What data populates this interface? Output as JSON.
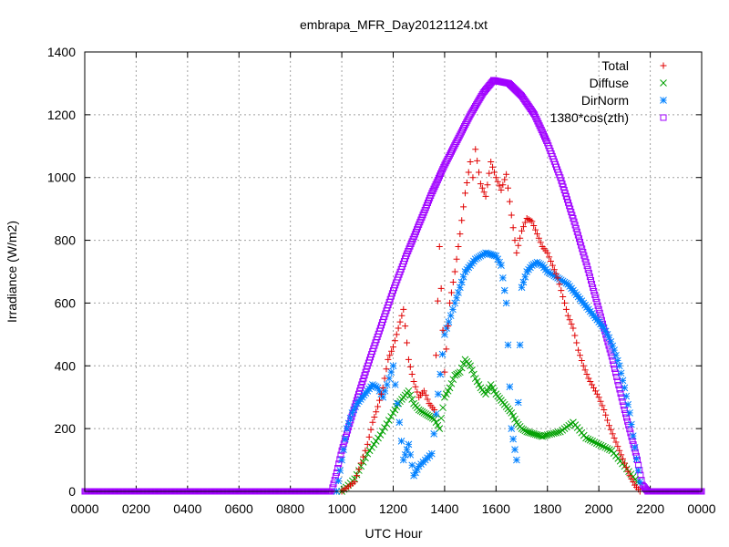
{
  "chart_data": {
    "type": "scatter",
    "title": "embrapa_MFR_Day20121124.txt",
    "xlabel": "UTC Hour",
    "ylabel": "Irradiance (W/m2)",
    "xlim": [
      0,
      2400
    ],
    "ylim": [
      0,
      1400
    ],
    "xtick_labels": [
      "0000",
      "0200",
      "0400",
      "0600",
      "0800",
      "1000",
      "1200",
      "1400",
      "1600",
      "1800",
      "2000",
      "2200",
      "0000"
    ],
    "ytick_labels": [
      "0",
      "200",
      "400",
      "600",
      "800",
      "1000",
      "1200",
      "1400"
    ],
    "grid": true,
    "legend_position": "top-right",
    "series": [
      {
        "name": "Total",
        "marker": "plus",
        "color": "#e00000",
        "x": [
          1000,
          1050,
          1100,
          1120,
          1140,
          1160,
          1180,
          1200,
          1220,
          1240,
          1260,
          1280,
          1300,
          1320,
          1340,
          1360,
          1380,
          1400,
          1420,
          1440,
          1460,
          1480,
          1500,
          1510,
          1520,
          1540,
          1560,
          1580,
          1600,
          1620,
          1640,
          1660,
          1680,
          1700,
          1720,
          1740,
          1760,
          1780,
          1800,
          1820,
          1840,
          1860,
          1880,
          1900,
          1920,
          1940,
          1960,
          1980,
          2000,
          2020,
          2040,
          2060,
          2080,
          2100,
          2120,
          2140,
          2160
        ],
        "y": [
          0,
          30,
          150,
          220,
          270,
          330,
          420,
          460,
          520,
          580,
          420,
          350,
          300,
          320,
          280,
          260,
          780,
          380,
          600,
          700,
          820,
          950,
          1050,
          1000,
          1090,
          980,
          940,
          1050,
          1000,
          960,
          1010,
          880,
          760,
          830,
          870,
          860,
          820,
          780,
          760,
          720,
          680,
          620,
          560,
          520,
          450,
          400,
          360,
          330,
          300,
          260,
          210,
          170,
          130,
          90,
          50,
          20,
          0
        ]
      },
      {
        "name": "Diffuse",
        "marker": "cross",
        "color": "#00a000",
        "x": [
          1000,
          1050,
          1100,
          1150,
          1200,
          1220,
          1240,
          1260,
          1280,
          1300,
          1320,
          1340,
          1360,
          1380,
          1400,
          1420,
          1440,
          1460,
          1480,
          1500,
          1520,
          1540,
          1560,
          1580,
          1600,
          1620,
          1640,
          1660,
          1680,
          1700,
          1720,
          1740,
          1760,
          1780,
          1800,
          1850,
          1900,
          1950,
          2000,
          2050,
          2100,
          2150
        ],
        "y": [
          0,
          40,
          120,
          180,
          250,
          280,
          300,
          320,
          280,
          260,
          250,
          240,
          230,
          200,
          300,
          330,
          370,
          380,
          420,
          400,
          360,
          330,
          310,
          340,
          310,
          290,
          270,
          250,
          220,
          200,
          190,
          185,
          180,
          175,
          180,
          190,
          220,
          170,
          150,
          130,
          80,
          30
        ]
      },
      {
        "name": "DirNorm",
        "marker": "star",
        "color": "#0080ff",
        "x": [
          980,
          1000,
          1020,
          1040,
          1060,
          1080,
          1100,
          1120,
          1140,
          1160,
          1200,
          1240,
          1260,
          1280,
          1300,
          1350,
          1400,
          1440,
          1460,
          1480,
          1500,
          1520,
          1540,
          1560,
          1580,
          1600,
          1620,
          1640,
          1660,
          1680,
          1700,
          1720,
          1740,
          1760,
          1780,
          1800,
          1820,
          1840,
          1860,
          1880,
          1900,
          1920,
          1940,
          1960,
          1980,
          2000,
          2020,
          2040,
          2060,
          2080,
          2100,
          2120,
          2140,
          2160
        ],
        "y": [
          0,
          100,
          200,
          250,
          280,
          300,
          320,
          340,
          330,
          300,
          400,
          100,
          150,
          50,
          80,
          120,
          500,
          600,
          650,
          700,
          720,
          740,
          750,
          760,
          755,
          750,
          720,
          600,
          200,
          100,
          650,
          700,
          720,
          730,
          720,
          700,
          690,
          680,
          670,
          660,
          640,
          620,
          600,
          580,
          560,
          540,
          520,
          490,
          450,
          400,
          330,
          250,
          140,
          30
        ]
      },
      {
        "name": "1380*cos(zth)",
        "marker": "square",
        "color": "#a000ff",
        "x": [
          0,
          960,
          980,
          1000,
          1050,
          1100,
          1150,
          1200,
          1250,
          1300,
          1350,
          1400,
          1450,
          1500,
          1550,
          1590,
          1600,
          1650,
          1700,
          1750,
          1800,
          1850,
          1900,
          1950,
          2000,
          2050,
          2100,
          2150,
          2170,
          2190,
          2400
        ],
        "y": [
          0,
          0,
          60,
          130,
          270,
          400,
          520,
          640,
          750,
          850,
          950,
          1040,
          1120,
          1200,
          1270,
          1310,
          1308,
          1300,
          1260,
          1200,
          1110,
          1000,
          870,
          730,
          580,
          430,
          260,
          100,
          20,
          0,
          0
        ]
      }
    ]
  }
}
